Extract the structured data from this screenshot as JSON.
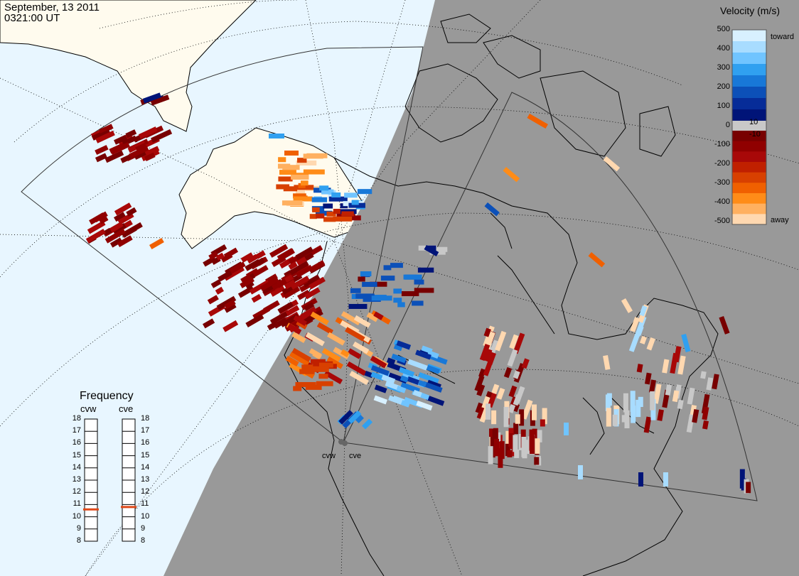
{
  "header": {
    "date": "September, 13 2011",
    "time": "0321:00 UT"
  },
  "radars": [
    "cvw",
    "cve"
  ],
  "colorbar": {
    "title": "Velocity (m/s)",
    "toward_label": "toward",
    "away_label": "away",
    "ticks": [
      "500",
      "400",
      "300",
      "200",
      "100",
      "10",
      "0",
      "-10",
      "-100",
      "-200",
      "-300",
      "-400",
      "-500"
    ],
    "toward_colors": [
      "#d8f0ff",
      "#a8dcff",
      "#70c4ff",
      "#30a0f0",
      "#1878d8",
      "#0c50b8",
      "#062c98",
      "#001478"
    ],
    "away_colors": [
      "#780000",
      "#900000",
      "#a80808",
      "#c02000",
      "#d84000",
      "#f06000",
      "#ff8c18",
      "#ffb060",
      "#ffd8b0"
    ],
    "ground_scatter_color": "#c8c8c8"
  },
  "frequency": {
    "title": "Frequency",
    "columns": [
      "cvw",
      "cve"
    ],
    "scale": [
      "18",
      "17",
      "16",
      "15",
      "14",
      "13",
      "12",
      "11",
      "10",
      "9",
      "8"
    ],
    "cvw_mhz": 10.6,
    "cve_mhz": 10.8,
    "marker_color": "#e04818"
  },
  "map_colors": {
    "ocean": "#e8f6ff",
    "land": "#fffbee",
    "night": "#999999",
    "coast": "#000000"
  }
}
